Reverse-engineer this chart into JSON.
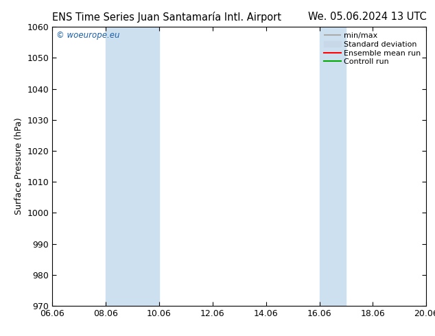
{
  "title_left": "ENS Time Series Juan Santamaría Intl. Airport",
  "title_right": "We. 05.06.2024 13 UTC",
  "ylabel": "Surface Pressure (hPa)",
  "ylim": [
    970,
    1060
  ],
  "yticks": [
    970,
    980,
    990,
    1000,
    1010,
    1020,
    1030,
    1040,
    1050,
    1060
  ],
  "xlim_start": 6.06,
  "xlim_end": 20.06,
  "xtick_labels": [
    "06.06",
    "08.06",
    "10.06",
    "12.06",
    "14.06",
    "16.06",
    "18.06",
    "20.06"
  ],
  "xtick_values": [
    6.06,
    8.06,
    10.06,
    12.06,
    14.06,
    16.06,
    18.06,
    20.06
  ],
  "shaded_regions": [
    {
      "xmin": 8.06,
      "xmax": 10.06,
      "color": "#cde0f0"
    },
    {
      "xmin": 16.06,
      "xmax": 17.06,
      "color": "#cde0f0"
    }
  ],
  "watermark_text": "© woeurope.eu",
  "watermark_color": "#1a5fa8",
  "background_color": "#ffffff",
  "legend_entries": [
    {
      "label": "min/max",
      "color": "#aaaaaa",
      "lw": 1.5
    },
    {
      "label": "Standard deviation",
      "color": "#c8d8e8",
      "lw": 8
    },
    {
      "label": "Ensemble mean run",
      "color": "#ff0000",
      "lw": 1.5
    },
    {
      "label": "Controll run",
      "color": "#00aa00",
      "lw": 1.5
    }
  ],
  "title_fontsize": 10.5,
  "tick_fontsize": 9,
  "legend_fontsize": 8,
  "ylabel_fontsize": 9
}
